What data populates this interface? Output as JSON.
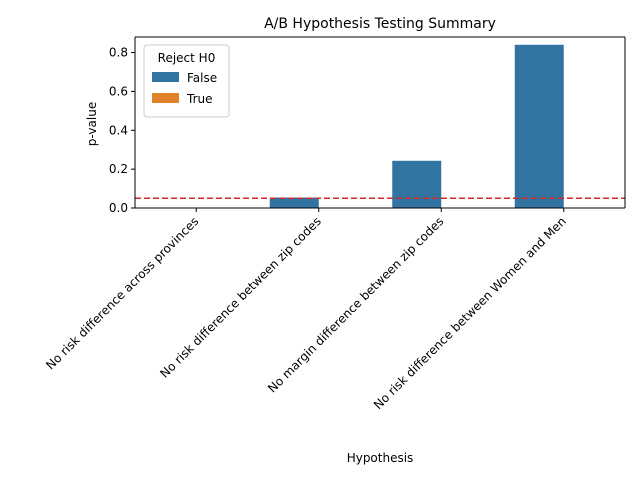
{
  "chart_data": {
    "type": "bar",
    "title": "A/B Hypothesis Testing Summary",
    "xlabel": "Hypothesis",
    "ylabel": "p-value",
    "ylim": [
      0,
      0.88
    ],
    "yticks": [
      0.0,
      0.2,
      0.4,
      0.6,
      0.8
    ],
    "ytick_labels": [
      "0.0",
      "0.2",
      "0.4",
      "0.6",
      "0.8"
    ],
    "categories": [
      "No risk difference across provinces",
      "No risk difference between zip codes",
      "No margin difference between zip codes",
      "No risk difference between Women and Men"
    ],
    "series": [
      {
        "name": "False",
        "color": "#3274a1",
        "values": [
          null,
          0.054,
          0.243,
          0.84
        ]
      },
      {
        "name": "True",
        "color": "#e1812c",
        "values": [
          0.0,
          null,
          null,
          null
        ]
      }
    ],
    "threshold": {
      "value": 0.05,
      "color": "#d62728",
      "style": "dashed"
    },
    "legend": {
      "title": "Reject H0",
      "placement": "top-left"
    }
  }
}
